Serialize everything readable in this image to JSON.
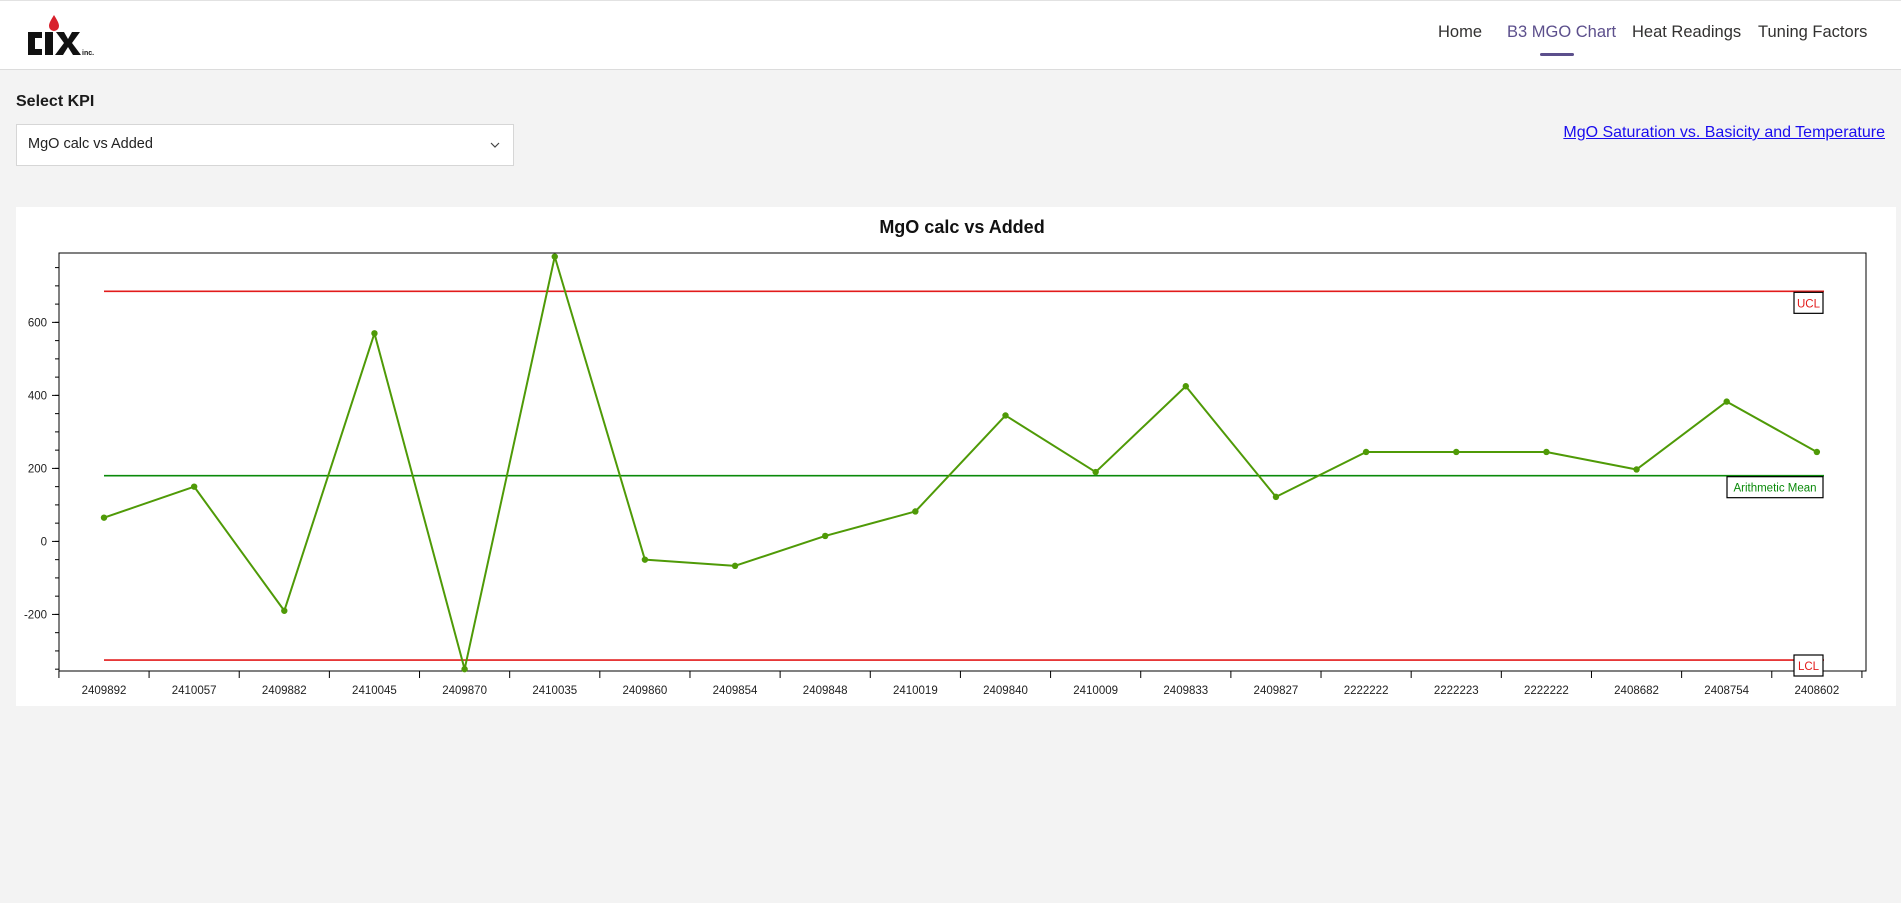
{
  "header": {
    "logo_text": "CIX",
    "logo_suffix": "inc.",
    "nav": [
      {
        "label": "Home",
        "active": false
      },
      {
        "label": "B3 MGO Chart",
        "active": true
      },
      {
        "label": "Heat Readings",
        "active": false
      },
      {
        "label": "Tuning Factors",
        "active": false
      }
    ]
  },
  "kpi": {
    "label": "Select KPI",
    "selected": "MgO calc vs Added"
  },
  "external_link": {
    "label": "MgO Saturation vs. Basicity and Temperature"
  },
  "colors": {
    "accent": "#5c4f8c",
    "series": "#4f9a07",
    "mean": "#0a8a0a",
    "limit": "#e21b1b",
    "link": "#1a0dee"
  },
  "chart_data": {
    "type": "line",
    "title": "MgO calc vs Added",
    "categories": [
      "2409892",
      "2410057",
      "2409882",
      "2410045",
      "2409870",
      "2410035",
      "2409860",
      "2409854",
      "2409848",
      "2410019",
      "2409840",
      "2410009",
      "2409833",
      "2409827",
      "2222222",
      "2222223",
      "2222222",
      "2408682",
      "2408754",
      "2408602"
    ],
    "values": [
      65,
      150,
      -190,
      570,
      -350,
      780,
      -50,
      -67,
      15,
      82,
      345,
      190,
      425,
      122,
      245,
      245,
      245,
      197,
      383,
      245
    ],
    "yticks": [
      -200,
      0,
      200,
      400,
      600
    ],
    "ylim": [
      -355,
      790
    ],
    "reference_lines": [
      {
        "name": "UCL",
        "value": 685
      },
      {
        "name": "Arithmetic Mean",
        "value": 180
      },
      {
        "name": "LCL",
        "value": -325
      }
    ],
    "xlabel": "",
    "ylabel": "",
    "grid": false,
    "legend": "none"
  }
}
